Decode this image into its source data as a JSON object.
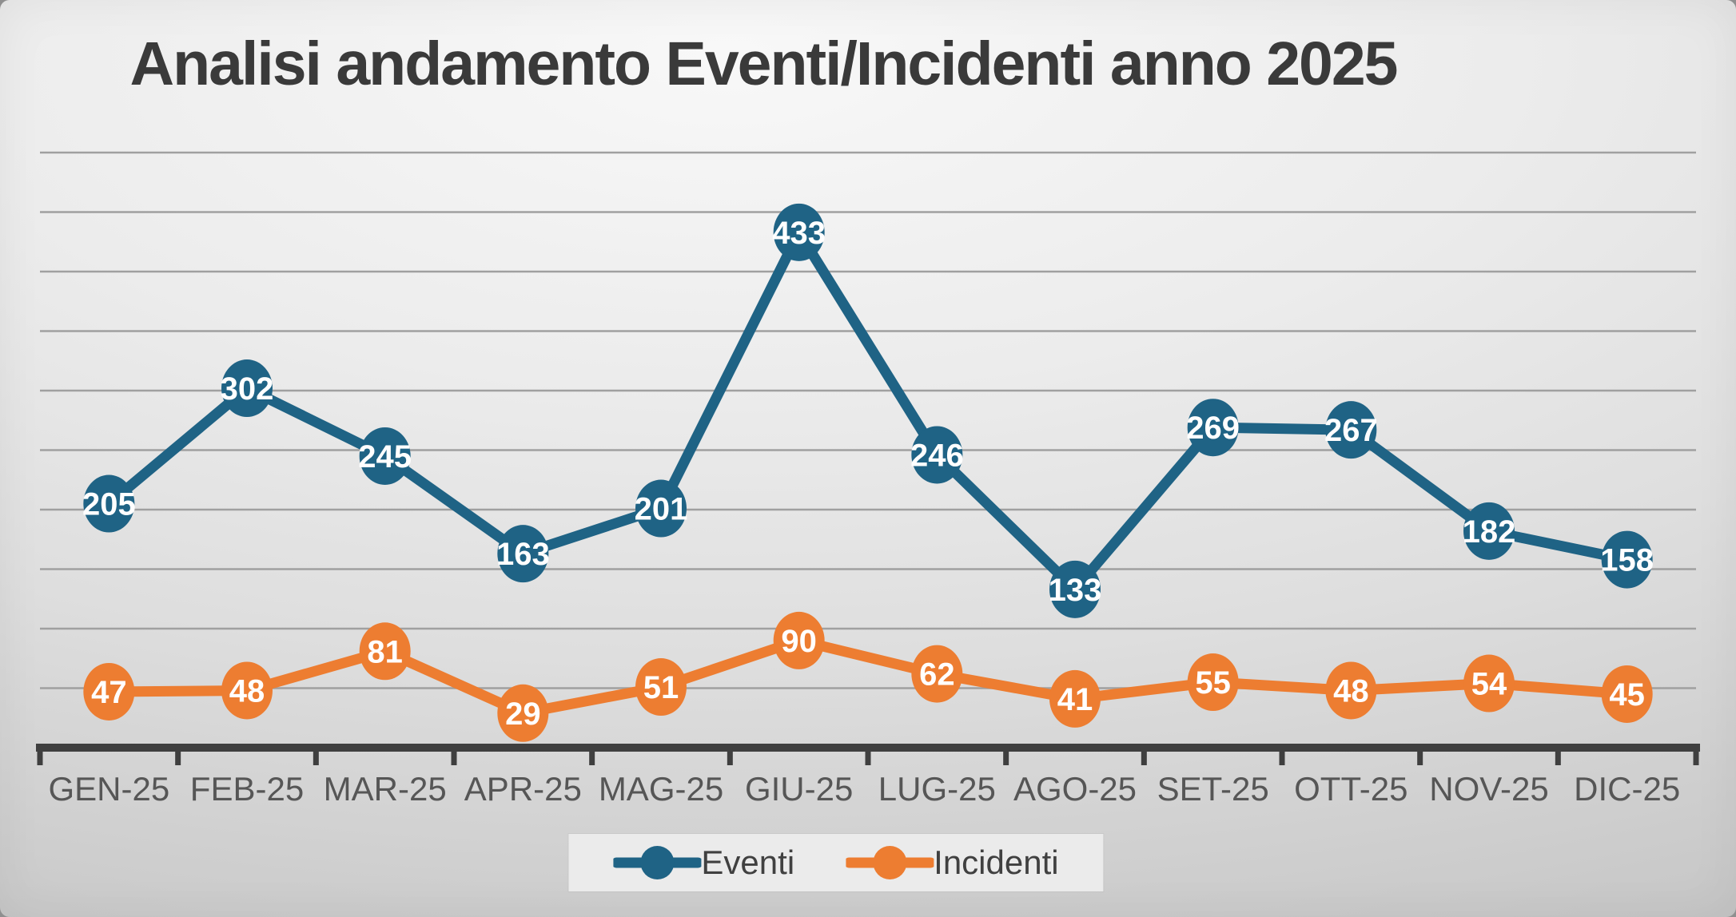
{
  "slide": {
    "title": "Analisi andamento Eventi/Incidenti anno 2025"
  },
  "chart_data": {
    "type": "line",
    "title": "Analisi andamento Eventi/Incidenti anno 2025",
    "categories": [
      "GEN-25",
      "FEB-25",
      "MAR-25",
      "APR-25",
      "MAG-25",
      "GIU-25",
      "LUG-25",
      "AGO-25",
      "SET-25",
      "OTT-25",
      "NOV-25",
      "DIC-25"
    ],
    "series": [
      {
        "name": "Eventi",
        "color": "#1F6385",
        "values": [
          205,
          302,
          245,
          163,
          201,
          433,
          246,
          133,
          269,
          267,
          182,
          158
        ]
      },
      {
        "name": "Incidenti",
        "color": "#ED7D31",
        "values": [
          47,
          48,
          81,
          29,
          51,
          90,
          62,
          41,
          55,
          48,
          54,
          45
        ]
      }
    ],
    "xlabel": "",
    "ylabel": "",
    "ylim": [
      0,
      500
    ],
    "grid_step": 50,
    "grid": "horizontal",
    "y_axis_labels_visible": false,
    "data_labels": "inside-marker",
    "legend_position": "bottom",
    "colors": {
      "grid": "#A0A0A0",
      "axis": "#3F3F3F",
      "category_label": "#565656",
      "data_label_text": "#FFFFFF",
      "title_text": "#3A3A3A",
      "legend_bg": "#EBEBEB",
      "legend_text": "#404040"
    }
  }
}
